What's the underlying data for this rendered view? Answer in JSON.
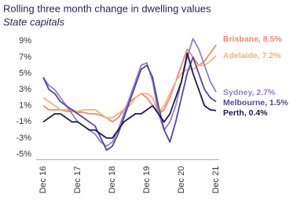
{
  "chart_data": {
    "type": "line",
    "title": "Rolling three month change in dwelling values",
    "subtitle": "State capitals",
    "categories": [
      "Dec 16",
      null,
      null,
      null,
      null,
      null,
      "Dec 17",
      null,
      null,
      null,
      null,
      null,
      "Dec 18",
      null,
      null,
      null,
      null,
      null,
      "Dec 19",
      null,
      null,
      null,
      null,
      null,
      "Dec 20",
      null,
      null,
      null,
      null,
      null,
      "Dec 21"
    ],
    "ylim": [
      -5.5,
      10
    ],
    "yticks": [
      {
        "value": 9,
        "label": "9%"
      },
      {
        "value": 7,
        "label": "7%"
      },
      {
        "value": 5,
        "label": "5%"
      },
      {
        "value": 3,
        "label": "3%"
      },
      {
        "value": 1,
        "label": "1%"
      },
      {
        "value": -1,
        "label": "-1%"
      },
      {
        "value": -3,
        "label": "-3%"
      },
      {
        "value": -5,
        "label": "-5%"
      }
    ],
    "grid": false,
    "series": [
      {
        "name": "Brisbane, 8.5%",
        "color": "#f08878",
        "values": [
          1,
          0.5,
          0.5,
          0.5,
          0.3,
          0.3,
          0.2,
          0.2,
          0,
          0,
          -0.2,
          -0.5,
          -1,
          -0.5,
          0.5,
          1.5,
          2,
          2.5,
          2,
          1,
          0,
          0.5,
          2,
          4,
          6,
          8,
          7,
          6,
          6.5,
          7.5,
          8.5
        ]
      },
      {
        "name": "Adelaide, 7.2%",
        "color": "#f2b27e",
        "values": [
          2,
          1.5,
          1,
          0.5,
          0.5,
          0.5,
          0.3,
          0.5,
          0.5,
          0.5,
          0,
          -0.5,
          -0.5,
          0,
          0.5,
          1,
          2,
          2.5,
          2.5,
          2,
          0,
          1,
          2.5,
          4,
          5,
          5.5,
          5.5,
          6,
          6,
          6.5,
          7.2
        ]
      },
      {
        "name": "Sydney, 2.7%",
        "color": "#9180c8",
        "values": [
          4.5,
          3.5,
          3,
          2,
          1,
          0,
          -1,
          -1.5,
          -2,
          -2.5,
          -3.5,
          -4,
          -3.5,
          -2,
          0,
          2,
          4,
          6,
          6.3,
          4,
          0,
          -2,
          -1,
          1,
          4,
          7,
          9.3,
          8,
          6,
          4,
          2.7
        ]
      },
      {
        "name": "Melbourne, 1.5%",
        "color": "#55479a",
        "values": [
          4.5,
          3,
          2.5,
          1.5,
          1,
          0.5,
          0,
          -0.5,
          -1,
          -1.5,
          -3,
          -4.5,
          -4,
          -2.5,
          -0.5,
          1.5,
          3.5,
          5.5,
          6,
          4.5,
          1,
          -2,
          -3.5,
          -1,
          2,
          5,
          7,
          5,
          3,
          2,
          1.5
        ]
      },
      {
        "name": "Perth, 0.4%",
        "color": "#1e1a4d",
        "values": [
          -1,
          -0.5,
          0,
          0,
          -0.5,
          -1,
          -1,
          -1.5,
          -2,
          -2,
          -2.5,
          -3,
          -3,
          -2,
          -1,
          -0.5,
          0,
          0,
          0.5,
          1,
          0,
          -1,
          0,
          2,
          4,
          7.5,
          5,
          3,
          1,
          0.5,
          0.4
        ]
      }
    ]
  }
}
